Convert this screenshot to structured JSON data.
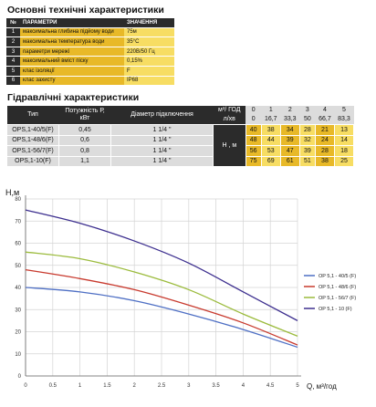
{
  "tech": {
    "title": "Основні технічні характеристики",
    "header": [
      "№",
      "ПАРАМЕТРИ",
      "ЗНАЧЕННЯ"
    ],
    "rows": [
      [
        "1",
        "максимальна глибина підйому води",
        "75м"
      ],
      [
        "2",
        "максимальна температура води",
        "35°С"
      ],
      [
        "3",
        "параметри мережі",
        "220В/50 Гц"
      ],
      [
        "4",
        "максимальний вміст піску",
        "0,15%"
      ],
      [
        "5",
        "клас ізоляції",
        "F"
      ],
      [
        "6",
        "клас захисту",
        "IP68"
      ]
    ]
  },
  "hydraulic": {
    "title": "Гідравлічні характеристики",
    "col_type": "Тип",
    "col_power": "Потужність Р, кВт",
    "col_diameter": "Діаметр підключення",
    "col_flow_unit": "м³/ ГОД",
    "col_flow_unit2": "л/хв",
    "col_head": "Н , м",
    "flow_m3": [
      "0",
      "1",
      "2",
      "3",
      "4",
      "5"
    ],
    "flow_lmin": [
      "0",
      "16,7",
      "33,3",
      "50",
      "66,7",
      "83,3"
    ],
    "models": [
      {
        "type": "OPS,1-40/5(F)",
        "power": "0,45",
        "diameter": "1 1/4 \"",
        "heads": [
          "40",
          "38",
          "34",
          "28",
          "21",
          "13"
        ]
      },
      {
        "type": "OPS,1-48/6(F)",
        "power": "0,6",
        "diameter": "1 1/4 \"",
        "heads": [
          "48",
          "44",
          "39",
          "32",
          "24",
          "14"
        ]
      },
      {
        "type": "OPS,1-56/7(F)",
        "power": "0,8",
        "diameter": "1 1/4 \"",
        "heads": [
          "56",
          "53",
          "47",
          "39",
          "28",
          "18"
        ]
      },
      {
        "type": "OPS,1-10(F)",
        "power": "1,1",
        "diameter": "1 1/4 \"",
        "heads": [
          "75",
          "69",
          "61",
          "51",
          "38",
          "25"
        ]
      }
    ]
  },
  "chart_data": {
    "type": "line",
    "ylabel": "H,м",
    "xlabel": "Q, м³/год",
    "xlim": [
      0,
      5
    ],
    "ylim": [
      0,
      80
    ],
    "x_ticks": [
      "0",
      "0.5",
      "1",
      "1.5",
      "2",
      "2.5",
      "3",
      "3.5",
      "4",
      "4.5",
      "5"
    ],
    "y_ticks": [
      "0",
      "10",
      "20",
      "30",
      "40",
      "50",
      "60",
      "70",
      "80"
    ],
    "grid": true,
    "legend_position": "right",
    "x": [
      0,
      1,
      2,
      3,
      4,
      5
    ],
    "series": [
      {
        "name": "OP 5,1 - 40/5 (F)",
        "color": "#4e6fc4",
        "values": [
          40,
          38,
          34,
          28,
          21,
          13
        ]
      },
      {
        "name": "OP 5,1 - 48/6 (F)",
        "color": "#c83a2e",
        "values": [
          48,
          44,
          39,
          32,
          24,
          14
        ]
      },
      {
        "name": "OP 5,1 - 56/7 (F)",
        "color": "#9bbb3c",
        "values": [
          56,
          53,
          47,
          39,
          28,
          18
        ]
      },
      {
        "name": "OP 5,1 - 10 (F)",
        "color": "#3d2f8f",
        "values": [
          75,
          69,
          61,
          51,
          38,
          25
        ]
      }
    ]
  }
}
